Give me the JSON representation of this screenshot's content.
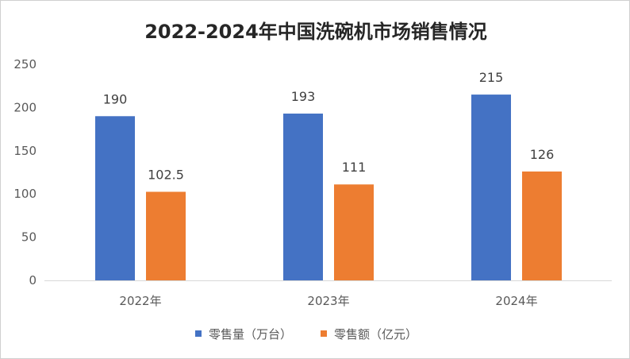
{
  "chart_data": {
    "type": "bar",
    "title": "2022-2024年中国洗碗机市场销售情况",
    "categories": [
      "2022年",
      "2023年",
      "2024年"
    ],
    "series": [
      {
        "name": "零售量（万台）",
        "values": [
          190,
          193,
          215
        ],
        "labels": [
          "190",
          "193",
          "215"
        ],
        "color": "#4472C4"
      },
      {
        "name": "零售额（亿元）",
        "values": [
          102.5,
          111,
          126
        ],
        "labels": [
          "102.5",
          "111",
          "126"
        ],
        "color": "#ED7D31"
      }
    ],
    "yticks": [
      "0",
      "50",
      "100",
      "150",
      "200",
      "250"
    ],
    "ylim": [
      0,
      250
    ],
    "grid": false,
    "legend": "bottom",
    "xlabel": "",
    "ylabel": ""
  }
}
